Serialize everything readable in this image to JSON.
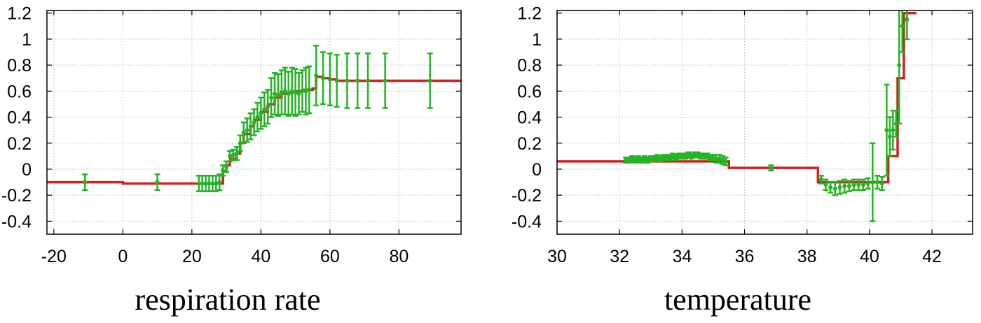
{
  "chart_data": [
    {
      "type": "line",
      "title": "",
      "xlabel": "respiration rate",
      "ylabel": "",
      "xlim": [
        -22,
        98
      ],
      "ylim": [
        -0.5,
        1.22
      ],
      "xticks": [
        -20,
        0,
        20,
        40,
        60,
        80
      ],
      "yticks": [
        1.2,
        1,
        0.8,
        0.6,
        0.4,
        0.2,
        0,
        -0.2,
        -0.4
      ],
      "tick_labels_x": [
        "-20",
        "0",
        "20",
        "40",
        "60",
        "80"
      ],
      "tick_labels_y": [
        "1.2",
        "1",
        "0.8",
        "0.6",
        "0.4",
        "0.2",
        "0",
        "-0.2",
        "-0.4"
      ],
      "grid": true,
      "series": [
        {
          "kind": "step",
          "color": "#d42020",
          "x": [
            -22,
            0,
            28,
            29,
            30,
            31,
            33,
            34,
            35,
            37,
            38,
            40,
            42,
            44,
            46,
            48,
            50,
            52,
            55,
            56,
            58,
            60,
            62,
            98
          ],
          "y": [
            -0.1,
            -0.11,
            -0.11,
            -0.02,
            0.03,
            0.08,
            0.12,
            0.2,
            0.27,
            0.33,
            0.38,
            0.44,
            0.5,
            0.55,
            0.58,
            0.59,
            0.6,
            0.61,
            0.62,
            0.71,
            0.7,
            0.69,
            0.68,
            0.68
          ]
        },
        {
          "kind": "errorbar",
          "color": "#22b422",
          "x": [
            -11,
            10,
            22,
            23,
            24,
            25,
            26,
            27,
            28,
            29,
            30,
            31,
            32,
            33,
            34,
            35,
            36,
            37,
            38,
            39,
            40,
            41,
            42,
            43,
            44,
            45,
            46,
            47,
            48,
            49,
            50,
            51,
            52,
            53,
            54,
            56,
            58,
            60,
            62,
            65,
            68,
            71,
            76,
            89
          ],
          "y": [
            -0.1,
            -0.1,
            -0.11,
            -0.11,
            -0.11,
            -0.11,
            -0.11,
            -0.11,
            -0.1,
            -0.01,
            0.02,
            0.1,
            0.11,
            0.12,
            0.2,
            0.28,
            0.3,
            0.33,
            0.36,
            0.4,
            0.43,
            0.46,
            0.48,
            0.55,
            0.58,
            0.57,
            0.59,
            0.6,
            0.58,
            0.6,
            0.59,
            0.58,
            0.6,
            0.6,
            0.61,
            0.72,
            0.7,
            0.69,
            0.68,
            0.68,
            0.68,
            0.68,
            0.68,
            0.68
          ],
          "err": [
            0.06,
            0.06,
            0.06,
            0.06,
            0.06,
            0.06,
            0.06,
            0.06,
            0.06,
            0.04,
            0.04,
            0.04,
            0.04,
            0.05,
            0.06,
            0.08,
            0.09,
            0.1,
            0.1,
            0.11,
            0.12,
            0.13,
            0.13,
            0.15,
            0.16,
            0.16,
            0.17,
            0.18,
            0.17,
            0.18,
            0.18,
            0.16,
            0.16,
            0.18,
            0.18,
            0.23,
            0.2,
            0.2,
            0.2,
            0.21,
            0.21,
            0.21,
            0.21,
            0.21
          ]
        }
      ]
    },
    {
      "type": "line",
      "title": "",
      "xlabel": "temperature",
      "ylabel": "",
      "xlim": [
        30,
        43.3
      ],
      "ylim": [
        -0.5,
        1.22
      ],
      "xticks": [
        30,
        32,
        34,
        36,
        38,
        40,
        42
      ],
      "yticks": [
        1.2,
        1,
        0.8,
        0.6,
        0.4,
        0.2,
        0,
        -0.2,
        -0.4
      ],
      "tick_labels_x": [
        "30",
        "32",
        "34",
        "36",
        "38",
        "40",
        "42"
      ],
      "tick_labels_y": [
        "1.2",
        "1",
        "0.8",
        "0.6",
        "0.4",
        "0.2",
        "0",
        "-0.2",
        "-0.4"
      ],
      "grid": true,
      "series": [
        {
          "kind": "step",
          "color": "#d42020",
          "x": [
            30,
            35.5,
            38.35,
            40.6,
            40.9,
            41.1,
            41.5
          ],
          "y": [
            0.06,
            0.01,
            -0.1,
            0.1,
            0.7,
            1.2,
            1.2
          ]
        },
        {
          "kind": "errorbar",
          "color": "#22b422",
          "x": [
            32.2,
            32.3,
            32.4,
            32.5,
            32.6,
            32.7,
            32.8,
            32.9,
            33.0,
            33.1,
            33.2,
            33.3,
            33.4,
            33.5,
            33.6,
            33.7,
            33.8,
            33.9,
            34.0,
            34.1,
            34.2,
            34.3,
            34.4,
            34.5,
            34.6,
            34.7,
            34.8,
            34.9,
            35.0,
            35.1,
            35.2,
            35.3,
            35.4,
            36.85,
            38.45,
            38.6,
            38.75,
            38.9,
            39.05,
            39.2,
            39.35,
            39.5,
            39.65,
            39.8,
            39.95,
            40.1,
            40.25,
            40.4,
            40.55,
            40.65,
            40.75,
            40.85,
            40.95,
            41.05,
            41.2
          ],
          "y": [
            0.07,
            0.07,
            0.08,
            0.07,
            0.08,
            0.07,
            0.08,
            0.07,
            0.08,
            0.08,
            0.09,
            0.08,
            0.09,
            0.09,
            0.09,
            0.1,
            0.09,
            0.1,
            0.1,
            0.1,
            0.11,
            0.1,
            0.11,
            0.11,
            0.1,
            0.1,
            0.1,
            0.09,
            0.09,
            0.08,
            0.08,
            0.07,
            0.06,
            0.01,
            -0.08,
            -0.12,
            -0.14,
            -0.15,
            -0.14,
            -0.13,
            -0.13,
            -0.12,
            -0.12,
            -0.12,
            -0.11,
            -0.1,
            -0.1,
            -0.11,
            0.3,
            0.25,
            0.3,
            0.35,
            0.8,
            1.1,
            1.15
          ],
          "err": [
            0.02,
            0.02,
            0.02,
            0.02,
            0.02,
            0.02,
            0.02,
            0.02,
            0.02,
            0.02,
            0.02,
            0.02,
            0.02,
            0.02,
            0.02,
            0.02,
            0.02,
            0.02,
            0.02,
            0.02,
            0.02,
            0.02,
            0.02,
            0.02,
            0.02,
            0.02,
            0.02,
            0.02,
            0.02,
            0.03,
            0.03,
            0.03,
            0.03,
            0.02,
            0.03,
            0.04,
            0.04,
            0.05,
            0.05,
            0.05,
            0.04,
            0.04,
            0.04,
            0.04,
            0.04,
            0.3,
            0.05,
            0.05,
            0.35,
            0.15,
            0.15,
            0.1,
            0.45,
            0.2,
            0.15
          ]
        }
      ]
    }
  ]
}
